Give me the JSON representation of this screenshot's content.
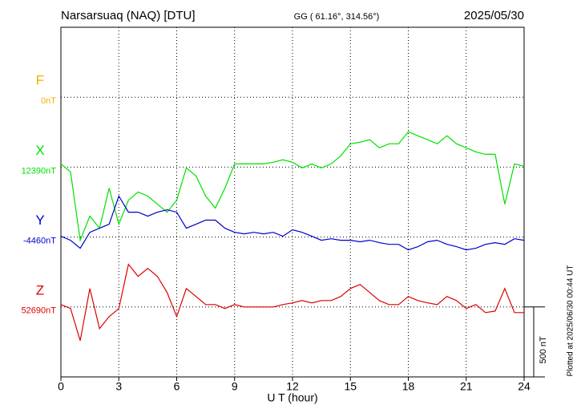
{
  "chart_data": {
    "type": "line",
    "title": "Narsarsuaq (NAQ)  [DTU]",
    "subtitle": "GG ( 61.16°, 314.56°)",
    "date": "2025/05/30",
    "note": "Plotted at 2025/06/30 00:44 UT",
    "x_label": "U T (hour)",
    "xlim": [
      0,
      24
    ],
    "xticks": [
      0,
      3,
      6,
      9,
      12,
      15,
      18,
      21,
      24
    ],
    "grid": true,
    "scale_bar": {
      "value": 500,
      "label": "500 nT"
    },
    "x": [
      0,
      0.5,
      1,
      1.5,
      2,
      2.5,
      3,
      3.5,
      4,
      4.5,
      5,
      5.5,
      6,
      6.5,
      7,
      7.5,
      8,
      8.5,
      9,
      9.5,
      10,
      10.5,
      11,
      11.5,
      12,
      12.5,
      13,
      13.5,
      14,
      14.5,
      15,
      15.5,
      16,
      16.5,
      17,
      17.5,
      18,
      18.5,
      19,
      19.5,
      20,
      20.5,
      21,
      21.5,
      22,
      22.5,
      23,
      23.5,
      24
    ],
    "series": [
      {
        "name": "F",
        "color": "#f0b000",
        "baseline": {
          "value": 0,
          "label": "0nT"
        },
        "values": [
          null,
          null,
          null,
          null,
          null,
          null,
          null,
          null,
          null,
          null,
          null,
          null,
          null,
          null,
          null,
          null,
          null,
          null,
          null,
          null,
          null,
          null,
          null,
          null,
          null,
          null,
          null,
          null,
          null,
          null,
          null,
          null,
          null,
          null,
          null,
          null,
          null,
          null,
          null,
          null,
          null,
          null,
          null,
          null,
          null,
          null,
          null,
          null,
          null
        ]
      },
      {
        "name": "X",
        "color": "#00e000",
        "baseline": {
          "value": 12390,
          "label": "12390nT"
        },
        "values": [
          12413,
          12356,
          11867,
          12039,
          11953,
          12240,
          11982,
          12154,
          12212,
          12183,
          12125,
          12068,
          12154,
          12384,
          12327,
          12183,
          12097,
          12240,
          12413,
          12413,
          12413,
          12413,
          12425,
          12442,
          12425,
          12384,
          12413,
          12384,
          12413,
          12471,
          12557,
          12568,
          12586,
          12528,
          12557,
          12557,
          12643,
          12614,
          12586,
          12557,
          12614,
          12557,
          12528,
          12499,
          12482,
          12482,
          12125,
          12413,
          12396
        ]
      },
      {
        "name": "Y",
        "color": "#0000cc",
        "baseline": {
          "value": -4460,
          "label": "-4460nT"
        },
        "values": [
          -4454,
          -4483,
          -4540,
          -4426,
          -4397,
          -4368,
          -4167,
          -4282,
          -4282,
          -4311,
          -4282,
          -4265,
          -4282,
          -4397,
          -4368,
          -4339,
          -4339,
          -4397,
          -4426,
          -4437,
          -4426,
          -4437,
          -4426,
          -4454,
          -4408,
          -4426,
          -4454,
          -4483,
          -4472,
          -4483,
          -4483,
          -4494,
          -4483,
          -4500,
          -4512,
          -4512,
          -4552,
          -4529,
          -4494,
          -4483,
          -4512,
          -4529,
          -4552,
          -4540,
          -4512,
          -4500,
          -4512,
          -4472,
          -4483
        ]
      },
      {
        "name": "Z",
        "color": "#dd0000",
        "baseline": {
          "value": 52690,
          "label": "52690nT"
        },
        "values": [
          52707,
          52679,
          52449,
          52822,
          52535,
          52621,
          52679,
          52995,
          52909,
          52966,
          52909,
          52794,
          52621,
          52822,
          52765,
          52707,
          52707,
          52679,
          52707,
          52690,
          52690,
          52690,
          52690,
          52707,
          52719,
          52736,
          52719,
          52736,
          52736,
          52765,
          52822,
          52851,
          52794,
          52736,
          52707,
          52707,
          52765,
          52736,
          52719,
          52707,
          52765,
          52736,
          52679,
          52707,
          52650,
          52661,
          52822,
          52650,
          52650
        ]
      }
    ]
  }
}
